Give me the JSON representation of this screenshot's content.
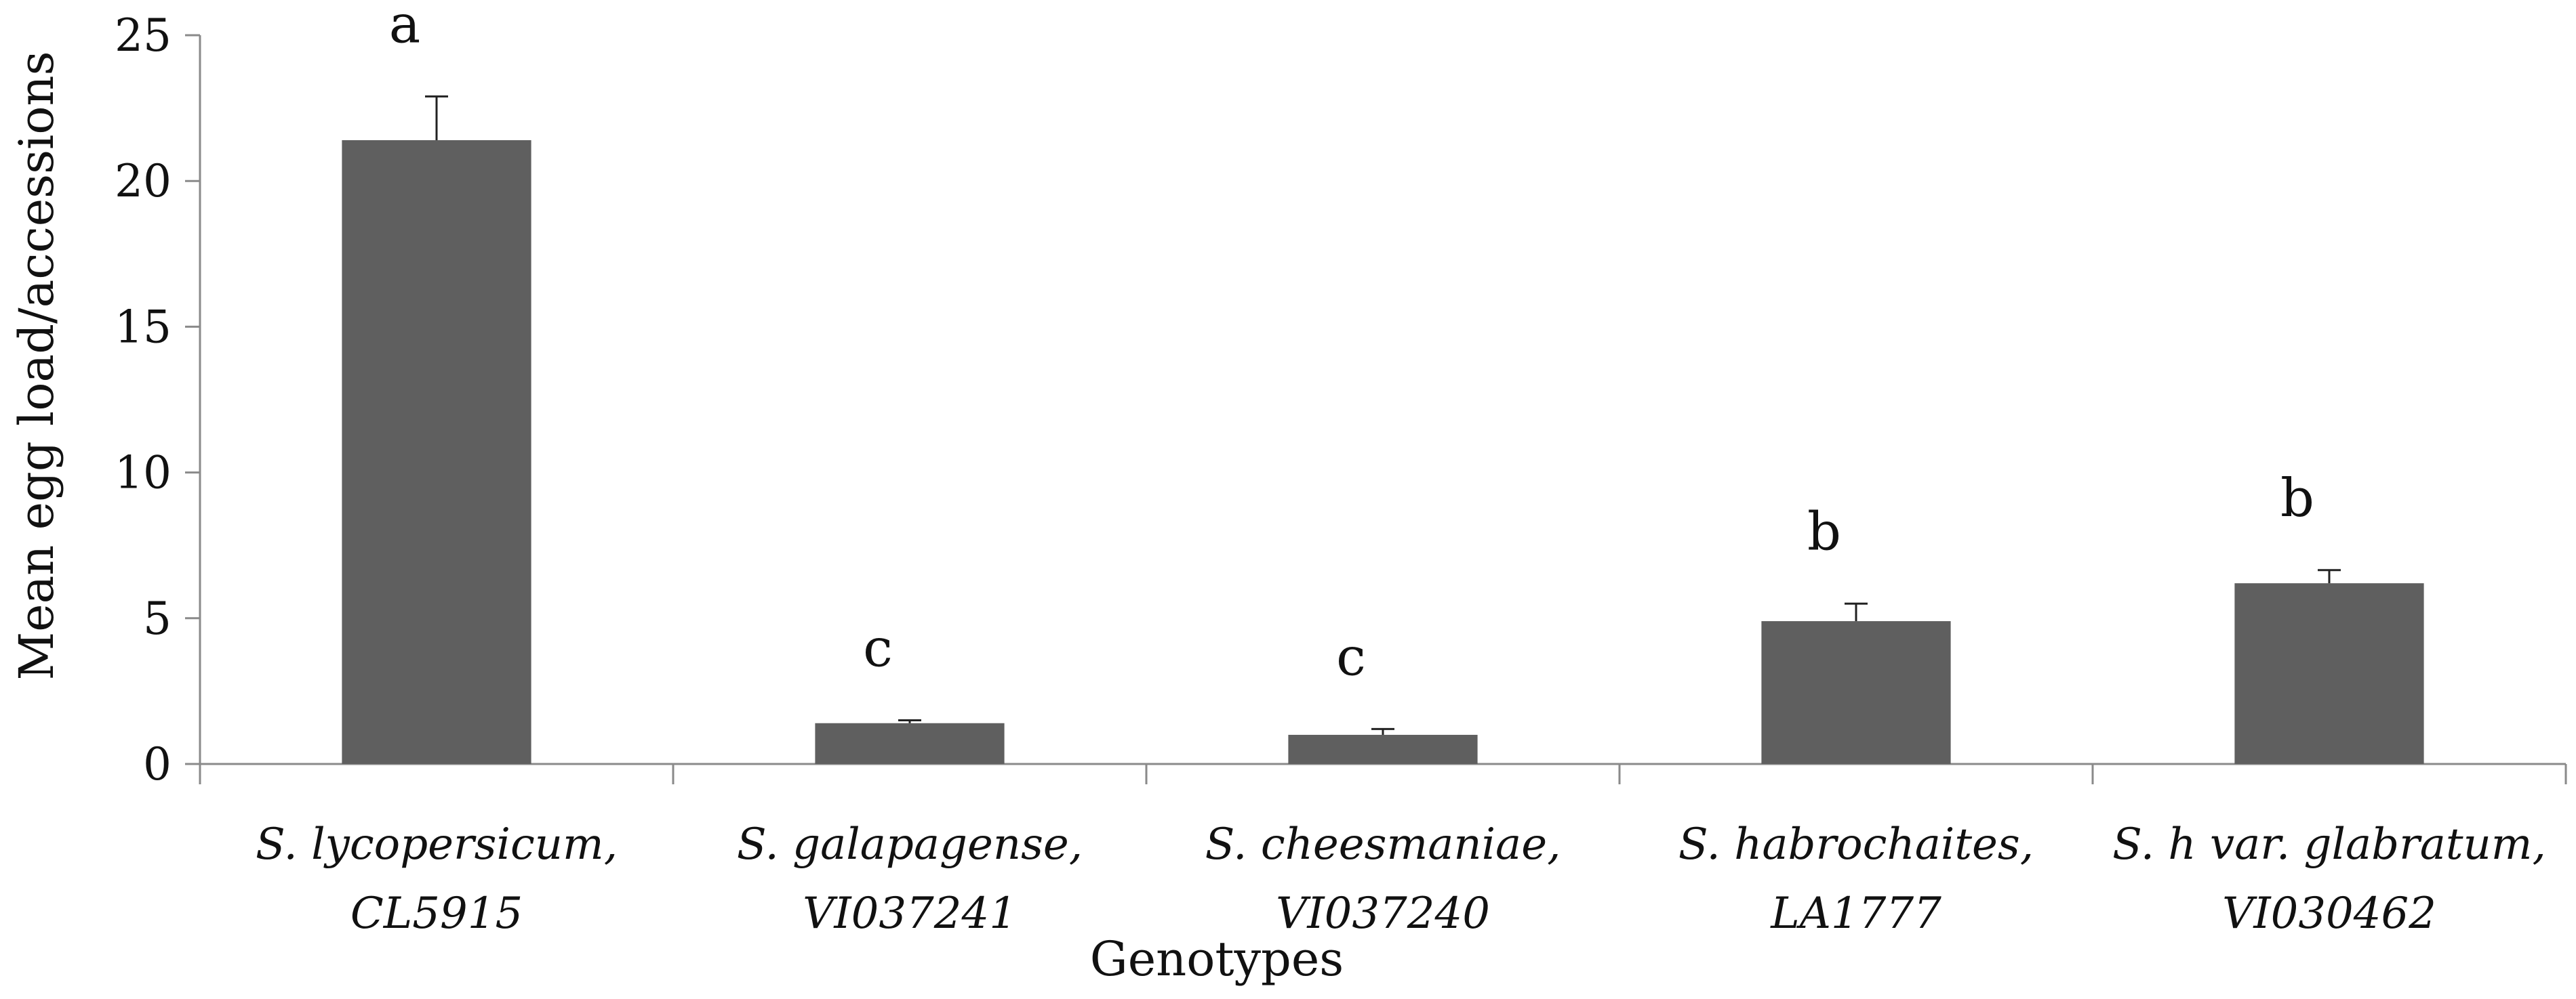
{
  "chart_data": {
    "type": "bar",
    "title": "",
    "xlabel": "Genotypes",
    "ylabel": "Mean egg load/accessions",
    "ylim": [
      0,
      25
    ],
    "yticks": [
      "0",
      "5",
      "10",
      "15",
      "20",
      "25"
    ],
    "categories": [
      {
        "line1": "S. lycopersicum,",
        "line2": "CL5915"
      },
      {
        "line1": "S. galapagense,",
        "line2": "VI037241"
      },
      {
        "line1": "S. cheesmaniae,",
        "line2": "VI037240"
      },
      {
        "line1": "S. habrochaites,",
        "line2": "LA1777"
      },
      {
        "line1": "S. h var. glabratum,",
        "line2": "VI030462"
      }
    ],
    "values": [
      21.4,
      1.4,
      1.0,
      4.9,
      6.2
    ],
    "errors": [
      1.5,
      0.1,
      0.2,
      0.6,
      0.45
    ],
    "significance": [
      "a",
      "c",
      "c",
      "b",
      "b"
    ],
    "bar_color": "#5f5f5f",
    "grid": false
  }
}
